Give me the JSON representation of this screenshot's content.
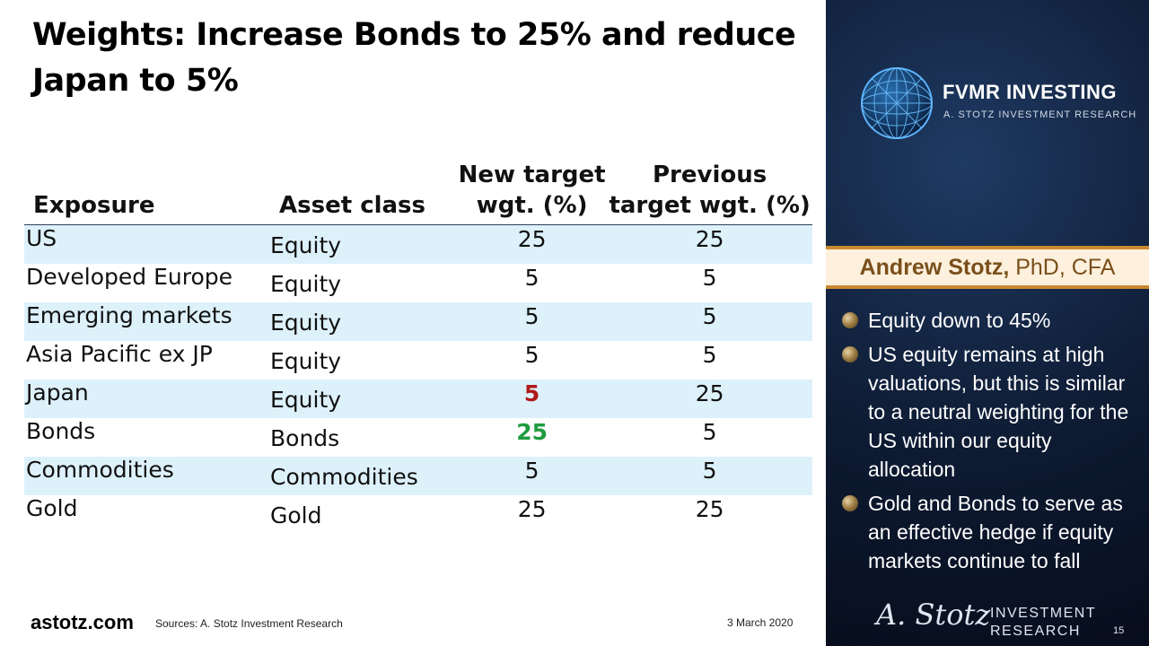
{
  "title": "Weights: Increase Bonds to 25% and reduce Japan to 5%",
  "table": {
    "headers": {
      "exposure": "Exposure",
      "asset_class": "Asset class",
      "new_target_line1": "New target",
      "new_target_line2": "wgt. (%)",
      "previous_target_line1": "Previous",
      "previous_target_line2": "target wgt. (%)"
    },
    "rows": [
      {
        "exposure": "US",
        "asset_class": "Equity",
        "new_target": "25",
        "previous_target": "25"
      },
      {
        "exposure": "Developed Europe",
        "asset_class": "Equity",
        "new_target": "5",
        "previous_target": "5"
      },
      {
        "exposure": "Emerging markets",
        "asset_class": "Equity",
        "new_target": "5",
        "previous_target": "5"
      },
      {
        "exposure": "Asia Pacific ex JP",
        "asset_class": "Equity",
        "new_target": "5",
        "previous_target": "5"
      },
      {
        "exposure": "Japan",
        "asset_class": "Equity",
        "new_target": "5",
        "previous_target": "25"
      },
      {
        "exposure": "Bonds",
        "asset_class": "Bonds",
        "new_target": "25",
        "previous_target": "5"
      },
      {
        "exposure": "Commodities",
        "asset_class": "Commodities",
        "new_target": "5",
        "previous_target": "5"
      },
      {
        "exposure": "Gold",
        "asset_class": "Gold",
        "new_target": "25",
        "previous_target": "25"
      }
    ]
  },
  "footer": {
    "site": "astotz.com",
    "sources": "Sources: A. Stotz Investment Research",
    "date": "3 March 2020",
    "page_number": "15"
  },
  "sidebar": {
    "logo_name": "FVMR INVESTING",
    "logo_sub": "A. STOTZ INVESTMENT RESEARCH",
    "presenter_name": "Andrew Stotz,",
    "presenter_credentials": " PhD, CFA",
    "bullets": [
      "Equity down to 45%",
      "US equity remains at high valuations, but this is similar to a neutral weighting for the US within our equity allocation",
      "Gold and Bonds to serve as an effective hedge if equity markets continue to fall"
    ],
    "signature": "A. Stotz",
    "brand_line1": "INVESTMENT",
    "brand_line2": "RESEARCH"
  },
  "colors": {
    "row_shade": "#ddf1fb",
    "decrease": "#b01a1a",
    "increase": "#1f9c41",
    "panel_bg": "#0e1b33",
    "accent_gold": "#c9892e"
  },
  "icons": {
    "logo": "wireframe-globe-icon",
    "bullet": "bronze-sphere-bullet-icon"
  }
}
